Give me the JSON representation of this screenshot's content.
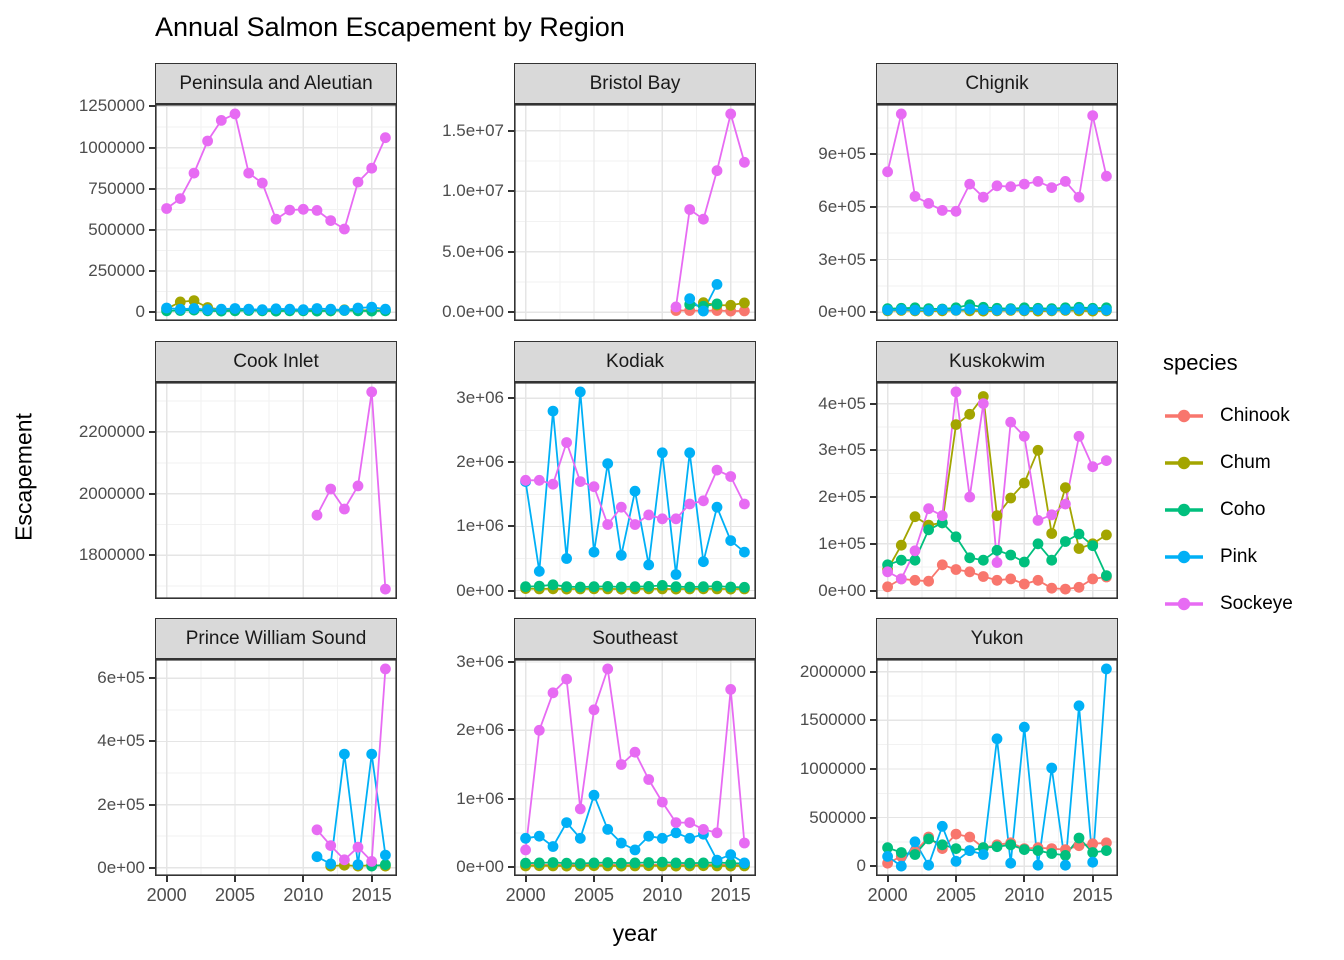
{
  "title": "Annual Salmon Escapement by Region",
  "axes": {
    "x_label": "year",
    "y_label": "Escapement",
    "x_tick_labels": [
      "2000",
      "2005",
      "2010",
      "2015"
    ],
    "x_tick_values": [
      2000,
      2005,
      2010,
      2015
    ]
  },
  "legend": {
    "title": "species",
    "entries": [
      {
        "label": "Chinook",
        "color": "#F8766D"
      },
      {
        "label": "Chum",
        "color": "#A3A500"
      },
      {
        "label": "Coho",
        "color": "#00BF7D"
      },
      {
        "label": "Pink",
        "color": "#00B0F6"
      },
      {
        "label": "Sockeye",
        "color": "#E76BF3"
      }
    ]
  },
  "colors": {
    "strip_bg": "#d9d9d9",
    "panel_border": "#333333",
    "grid_major": "#e5e5e5",
    "grid_minor": "#f2f2f2",
    "axis_text": "#4d4d4d",
    "tick_mark": "#333333"
  },
  "chart_data": {
    "type": "line",
    "title": "Annual Salmon Escapement by Region",
    "xlabel": "year",
    "ylabel": "Escapement",
    "grid": true,
    "legend_position": "right",
    "x_domain": [
      1999.15,
      2016.85
    ],
    "years": [
      2000,
      2001,
      2002,
      2003,
      2004,
      2005,
      2006,
      2007,
      2008,
      2009,
      2010,
      2011,
      2012,
      2013,
      2014,
      2015,
      2016
    ],
    "facets": [
      {
        "title": "Peninsula and Aleutian",
        "yticks": {
          "labels": [
            "0",
            "250000",
            "500000",
            "750000",
            "1000000",
            "1250000"
          ],
          "values": [
            0,
            250000,
            500000,
            750000,
            1000000,
            1250000
          ]
        },
        "series": [
          {
            "species": "Chum",
            "values": [
              20000,
              62000,
              70000,
              28000,
              15000,
              12000,
              12000,
              10000,
              8000,
              10000,
              12000,
              10000,
              8000,
              14000,
              10000,
              12000,
              10000
            ]
          },
          {
            "species": "Coho",
            "values": [
              8000,
              10000,
              12000,
              8000,
              6000,
              8000,
              10000,
              8000,
              6000,
              8000,
              8000,
              6000,
              8000,
              10000,
              8000,
              6000,
              8000
            ]
          },
          {
            "species": "Pink",
            "values": [
              25000,
              18000,
              22000,
              15000,
              18000,
              22000,
              18000,
              15000,
              20000,
              18000,
              15000,
              22000,
              18000,
              12000,
              25000,
              30000,
              18000
            ]
          },
          {
            "species": "Sockeye",
            "values": [
              630000,
              690000,
              845000,
              1040000,
              1165000,
              1205000,
              845000,
              785000,
              565000,
              620000,
              625000,
              618000,
              556000,
              505000,
              790000,
              875000,
              1060000
            ]
          }
        ]
      },
      {
        "title": "Bristol Bay",
        "yticks": {
          "labels": [
            "0.0e+00",
            "5.0e+06",
            "1.0e+07",
            "1.5e+07"
          ],
          "values": [
            0,
            5000000,
            10000000,
            15000000
          ]
        },
        "series": [
          {
            "species": "Chinook",
            "years": [
              2011,
              2012,
              2013,
              2014,
              2015,
              2016
            ],
            "values": [
              150000,
              150000,
              130000,
              150000,
              100000,
              120000
            ]
          },
          {
            "species": "Chum",
            "years": [
              2013,
              2014,
              2015,
              2016
            ],
            "values": [
              800000,
              600000,
              580000,
              780000
            ]
          },
          {
            "species": "Coho",
            "years": [
              2012,
              2013,
              2014
            ],
            "values": [
              650000,
              500000,
              700000
            ]
          },
          {
            "species": "Pink",
            "years": [
              2012,
              2013,
              2014
            ],
            "values": [
              1130000,
              110000,
              2310000
            ]
          },
          {
            "species": "Sockeye",
            "years": [
              2011,
              2012,
              2013,
              2014,
              2015,
              2016
            ],
            "values": [
              450000,
              8500000,
              7700000,
              11700000,
              16400000,
              12400000
            ]
          }
        ]
      },
      {
        "title": "Chignik",
        "yticks": {
          "labels": [
            "0e+00",
            "3e+05",
            "6e+05",
            "9e+05"
          ],
          "values": [
            0,
            300000,
            600000,
            900000
          ]
        },
        "series": [
          {
            "species": "Chum",
            "values": [
              8000,
              10000,
              8000,
              6000,
              8000,
              10000,
              8000,
              6000,
              8000,
              10000,
              8000,
              6000,
              8000,
              10000,
              8000,
              6000,
              8000
            ]
          },
          {
            "species": "Coho",
            "values": [
              20000,
              22000,
              25000,
              20000,
              18000,
              25000,
              42000,
              28000,
              22000,
              20000,
              25000,
              22000,
              20000,
              25000,
              28000,
              22000,
              25000
            ]
          },
          {
            "species": "Pink",
            "values": [
              12000,
              15000,
              12000,
              10000,
              15000,
              12000,
              18000,
              15000,
              12000,
              15000,
              12000,
              15000,
              12000,
              15000,
              18000,
              15000,
              12000
            ]
          },
          {
            "species": "Sockeye",
            "values": [
              800000,
              1130000,
              660000,
              620000,
              580000,
              575000,
              730000,
              655000,
              720000,
              715000,
              730000,
              745000,
              710000,
              745000,
              655000,
              1120000,
              775000
            ]
          }
        ]
      },
      {
        "title": "Cook Inlet",
        "yticks": {
          "labels": [
            "1800000",
            "2000000",
            "2200000"
          ],
          "values": [
            1800000,
            2000000,
            2200000
          ]
        },
        "series": [
          {
            "species": "Sockeye",
            "years": [
              2011,
              2012,
              2013,
              2014,
              2015,
              2016
            ],
            "values": [
              1930000,
              2015000,
              1950000,
              2025000,
              2330000,
              1690000
            ]
          }
        ]
      },
      {
        "title": "Kodiak",
        "yticks": {
          "labels": [
            "0e+00",
            "1e+06",
            "2e+06",
            "3e+06"
          ],
          "values": [
            0,
            1000000,
            2000000,
            3000000
          ]
        },
        "series": [
          {
            "species": "Chum",
            "values": [
              30000,
              25000,
              28000,
              22000,
              25000,
              28000,
              25000,
              22000,
              25000,
              28000,
              25000,
              22000,
              25000,
              28000,
              25000,
              22000,
              25000
            ]
          },
          {
            "species": "Coho",
            "values": [
              60000,
              70000,
              90000,
              60000,
              55000,
              60000,
              65000,
              55000,
              60000,
              65000,
              80000,
              60000,
              55000,
              60000,
              70000,
              55000,
              50000
            ]
          },
          {
            "species": "Pink",
            "values": [
              1700000,
              300000,
              2800000,
              500000,
              3100000,
              600000,
              1980000,
              550000,
              1550000,
              400000,
              2150000,
              250000,
              2150000,
              450000,
              1300000,
              780000,
              600000
            ]
          },
          {
            "species": "Sockeye",
            "values": [
              1720000,
              1720000,
              1660000,
              2310000,
              1700000,
              1620000,
              1030000,
              1300000,
              1030000,
              1180000,
              1120000,
              1120000,
              1350000,
              1400000,
              1880000,
              1780000,
              1350000
            ]
          }
        ]
      },
      {
        "title": "Kuskokwim",
        "yticks": {
          "labels": [
            "0e+00",
            "1e+05",
            "2e+05",
            "3e+05",
            "4e+05"
          ],
          "values": [
            0,
            100000,
            200000,
            300000,
            400000
          ]
        },
        "series": [
          {
            "species": "Chinook",
            "values": [
              8000,
              25000,
              22000,
              20000,
              55000,
              45000,
              40000,
              30000,
              22000,
              25000,
              14000,
              22000,
              5000,
              3000,
              7000,
              25000,
              29000
            ]
          },
          {
            "species": "Chum",
            "values": [
              45000,
              97000,
              158000,
              140000,
              145000,
              355000,
              377000,
              415000,
              160000,
              198000,
              230000,
              300000,
              122000,
              220000,
              90000,
              100000,
              119000
            ]
          },
          {
            "species": "Coho",
            "values": [
              55000,
              65000,
              65000,
              130000,
              145000,
              115000,
              70000,
              65000,
              86000,
              76000,
              61000,
              100000,
              65000,
              105000,
              121000,
              96000,
              32000
            ]
          },
          {
            "species": "Sockeye",
            "values": [
              40000,
              25000,
              85000,
              175000,
              160000,
              425000,
              200000,
              400000,
              60000,
              360000,
              330000,
              150000,
              162000,
              185000,
              330000,
              265000,
              278000
            ]
          }
        ]
      },
      {
        "title": "Prince William Sound",
        "yticks": {
          "labels": [
            "0e+00",
            "2e+05",
            "4e+05",
            "6e+05"
          ],
          "values": [
            0,
            200000,
            400000,
            600000
          ]
        },
        "series": [
          {
            "species": "Chum",
            "years": [
              2012,
              2013,
              2014,
              2015,
              2016
            ],
            "values": [
              5000,
              8000,
              5000,
              8000,
              5000
            ]
          },
          {
            "species": "Coho",
            "years": [
              2015,
              2016
            ],
            "values": [
              5000,
              10000
            ]
          },
          {
            "species": "Pink",
            "years": [
              2011,
              2012,
              2013,
              2014,
              2015,
              2016
            ],
            "values": [
              35000,
              12000,
              360000,
              10000,
              360000,
              40000
            ]
          },
          {
            "species": "Sockeye",
            "years": [
              2011,
              2012,
              2013,
              2014,
              2015,
              2016
            ],
            "values": [
              120000,
              70000,
              25000,
              65000,
              20000,
              630000
            ]
          }
        ]
      },
      {
        "title": "Southeast",
        "yticks": {
          "labels": [
            "0e+00",
            "1e+06",
            "2e+06",
            "3e+06"
          ],
          "values": [
            0,
            1000000,
            2000000,
            3000000
          ]
        },
        "series": [
          {
            "species": "Chinook",
            "values": [
              25000,
              30000,
              28000,
              32000,
              30000,
              35000,
              32000,
              30000,
              28000,
              30000,
              32000,
              30000,
              28000,
              30000,
              32000,
              30000,
              28000
            ]
          },
          {
            "species": "Chum",
            "values": [
              15000,
              18000,
              15000,
              12000,
              15000,
              18000,
              15000,
              12000,
              15000,
              18000,
              15000,
              12000,
              15000,
              18000,
              15000,
              12000,
              15000
            ]
          },
          {
            "species": "Coho",
            "values": [
              55000,
              60000,
              65000,
              55000,
              50000,
              60000,
              65000,
              55000,
              60000,
              65000,
              70000,
              60000,
              55000,
              60000,
              65000,
              55000,
              50000
            ]
          },
          {
            "species": "Pink",
            "values": [
              420000,
              450000,
              300000,
              650000,
              420000,
              1050000,
              550000,
              350000,
              250000,
              450000,
              420000,
              500000,
              420000,
              480000,
              100000,
              180000,
              60000
            ]
          },
          {
            "species": "Sockeye",
            "values": [
              250000,
              2000000,
              2550000,
              2750000,
              850000,
              2300000,
              2900000,
              1500000,
              1680000,
              1280000,
              950000,
              650000,
              650000,
              550000,
              500000,
              2600000,
              350000
            ]
          }
        ]
      },
      {
        "title": "Yukon",
        "yticks": {
          "labels": [
            "0",
            "500000",
            "1000000",
            "1500000",
            "2000000"
          ],
          "values": [
            0,
            500000,
            1000000,
            1500000,
            2000000
          ]
        },
        "series": [
          {
            "species": "Chinook",
            "values": [
              30000,
              100000,
              150000,
              300000,
              180000,
              330000,
              300000,
              190000,
              220000,
              240000,
              180000,
              190000,
              180000,
              170000,
              210000,
              230000,
              240000
            ]
          },
          {
            "species": "Coho",
            "values": [
              190000,
              140000,
              120000,
              280000,
              220000,
              180000,
              160000,
              190000,
              200000,
              220000,
              170000,
              160000,
              130000,
              110000,
              290000,
              140000,
              160000
            ]
          },
          {
            "species": "Pink",
            "values": [
              100000,
              0,
              250000,
              10000,
              410000,
              50000,
              160000,
              120000,
              1310000,
              30000,
              1430000,
              10000,
              1010000,
              10000,
              1650000,
              40000,
              2030000
            ]
          }
        ]
      }
    ]
  }
}
